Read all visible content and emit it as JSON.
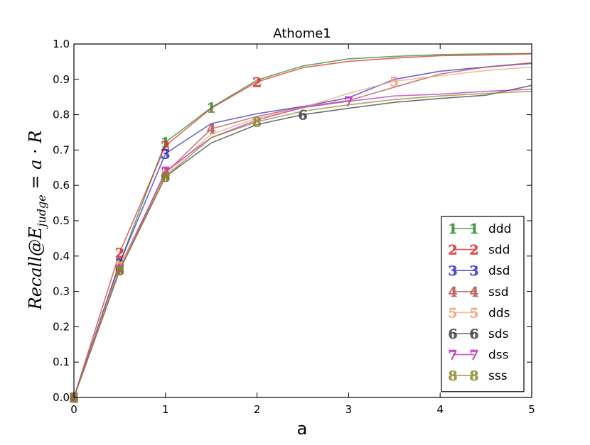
{
  "chart_data": {
    "type": "line",
    "title": "Athome1",
    "xlabel": "a",
    "ylabel": "Recall@E_judge = a · R",
    "ylabel_parts": {
      "main": "Recall@E",
      "sub": "judge",
      "rest": " = a · R"
    },
    "xlim": [
      0,
      5
    ],
    "ylim": [
      0,
      1.0
    ],
    "xticks": [
      "0",
      "1",
      "2",
      "3",
      "4",
      "5"
    ],
    "yticks": [
      "0.0",
      "0.1",
      "0.2",
      "0.3",
      "0.4",
      "0.5",
      "0.6",
      "0.7",
      "0.8",
      "0.9",
      "1.0"
    ],
    "grid": false,
    "legend_position": "lower right",
    "x": [
      0,
      0.5,
      1,
      1.5,
      2,
      2.5,
      3,
      3.5,
      4,
      4.5,
      5
    ],
    "series": [
      {
        "name": "ddd",
        "marker": "1",
        "color": "#2e8b2e",
        "marker_x": 1.5,
        "values": [
          0.0,
          0.38,
          0.722,
          0.82,
          0.898,
          0.938,
          0.958,
          0.965,
          0.97,
          0.972,
          0.973
        ]
      },
      {
        "name": "sdd",
        "marker": "2",
        "color": "#dd3030",
        "marker_x": 2,
        "values": [
          0.0,
          0.41,
          0.712,
          0.818,
          0.893,
          0.933,
          0.951,
          0.96,
          0.967,
          0.969,
          0.972
        ]
      },
      {
        "name": "dsd",
        "marker": "3",
        "color": "#3333cc",
        "marker_x": 1,
        "values": [
          0.0,
          0.38,
          0.69,
          0.775,
          0.803,
          0.823,
          0.848,
          0.9,
          0.923,
          0.935,
          0.945
        ]
      },
      {
        "name": "ssd",
        "marker": "4",
        "color": "#b85050",
        "marker_x": 1.5,
        "values": [
          0.0,
          0.37,
          0.635,
          0.76,
          0.795,
          0.822,
          0.84,
          0.878,
          0.915,
          0.935,
          0.947
        ]
      },
      {
        "name": "dds",
        "marker": "5",
        "color": "#f4a582",
        "marker_x": 3.5,
        "values": [
          0.0,
          0.37,
          0.63,
          0.745,
          0.79,
          0.82,
          0.86,
          0.895,
          0.91,
          0.925,
          0.935
        ]
      },
      {
        "name": "sds",
        "marker": "6",
        "color": "#404040",
        "marker_x": 2.5,
        "values": [
          0.0,
          0.36,
          0.625,
          0.72,
          0.772,
          0.8,
          0.818,
          0.835,
          0.846,
          0.855,
          0.883
        ]
      },
      {
        "name": "dss",
        "marker": "7",
        "color": "#bb33bb",
        "marker_x": 3,
        "values": [
          0.0,
          0.36,
          0.64,
          0.735,
          0.785,
          0.82,
          0.838,
          0.853,
          0.858,
          0.866,
          0.872
        ]
      },
      {
        "name": "sss",
        "marker": "8",
        "color": "#8b8b2e",
        "marker_x": 2,
        "values": [
          0.0,
          0.36,
          0.625,
          0.735,
          0.78,
          0.81,
          0.828,
          0.843,
          0.853,
          0.86,
          0.866
        ]
      }
    ]
  }
}
